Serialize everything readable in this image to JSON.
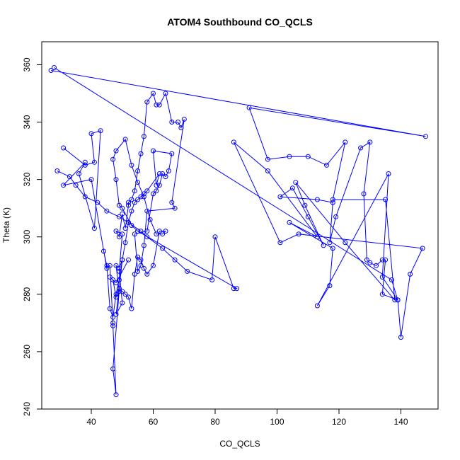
{
  "chart_data": {
    "type": "line",
    "title": "ATOM4 Southbound CO_QCLS",
    "xlabel": "CO_QCLS",
    "ylabel": "Theta (K)",
    "xlim": [
      24,
      152
    ],
    "ylim": [
      240,
      368
    ],
    "xticks": [
      40,
      60,
      80,
      100,
      120,
      140
    ],
    "yticks": [
      240,
      260,
      280,
      300,
      320,
      340,
      360
    ],
    "markers": "open-circle",
    "grid": false,
    "legend": "none",
    "colors": {
      "series": "#0000ff",
      "axis": "#000000",
      "background": "#ffffff"
    },
    "series": [
      {
        "x": [
          27,
          148,
          91,
          97,
          104,
          110,
          116,
          122,
          118,
          135,
          138,
          122,
          106,
          109,
          115,
          110,
          105,
          101,
          113,
          118,
          117,
          119,
          127,
          130,
          128,
          129,
          130,
          132,
          134,
          135,
          134,
          139,
          140,
          143,
          147,
          107,
          101,
          86,
          97,
          113,
          104,
          118,
          117,
          113,
          136,
          134,
          139,
          137,
          28
        ],
        "y": [
          358,
          335,
          345,
          327,
          328,
          328,
          325,
          333,
          313,
          313,
          278,
          298,
          319,
          311,
          297,
          307,
          317,
          314,
          313,
          312,
          298,
          307,
          331,
          333,
          315,
          292,
          291,
          290,
          292,
          292,
          280,
          278,
          265,
          287,
          296,
          301,
          298,
          333,
          323,
          300,
          305,
          296,
          283,
          276,
          322,
          286,
          278,
          285,
          359
        ]
      },
      {
        "x": [
          31,
          38,
          41,
          40,
          43,
          41,
          36,
          38,
          31,
          40,
          45,
          46,
          47,
          47,
          48,
          47,
          49,
          48,
          49,
          50,
          49,
          48,
          50,
          49,
          50,
          48,
          49,
          50,
          51,
          52,
          52,
          53,
          54,
          55,
          56,
          57,
          58,
          60,
          61,
          62,
          64,
          66,
          68,
          69,
          70,
          66,
          67,
          58,
          57,
          56,
          55,
          54,
          58,
          60,
          61,
          62,
          63,
          64,
          65,
          66,
          60,
          61,
          62,
          58,
          57,
          56,
          55,
          54,
          53,
          52,
          51,
          50,
          49,
          48,
          47,
          46,
          45,
          44
        ],
        "y": [
          331,
          325,
          326,
          336,
          337,
          303,
          322,
          326,
          318,
          320,
          289,
          290,
          270,
          269,
          245,
          254,
          281,
          290,
          289,
          292,
          282,
          273,
          277,
          288,
          301,
          302,
          300,
          308,
          303,
          311,
          312,
          313,
          316,
          323,
          329,
          335,
          347,
          350,
          346,
          346,
          350,
          340,
          340,
          338,
          341,
          312,
          310,
          309,
          297,
          290,
          288,
          301,
          302,
          315,
          316,
          318,
          322,
          321,
          323,
          329,
          330,
          318,
          322,
          316,
          315,
          314,
          313,
          312,
          309,
          305,
          298,
          292,
          285,
          280,
          272,
          275,
          290,
          295
        ]
      },
      {
        "x": [
          29,
          33,
          35,
          38,
          42,
          45,
          49,
          52,
          56,
          58,
          63,
          67,
          71,
          79,
          80,
          86,
          87,
          55,
          53,
          50,
          49,
          48,
          47,
          48,
          51,
          53,
          55,
          57,
          59,
          61,
          63,
          64,
          62,
          60,
          58,
          57,
          56,
          55,
          54,
          53,
          52,
          51,
          50,
          49,
          48,
          47,
          46,
          48,
          52
        ],
        "y": [
          323,
          321,
          318,
          314,
          312,
          309,
          307,
          305,
          302,
          300,
          296,
          292,
          288,
          285,
          300,
          282,
          282,
          302,
          304,
          310,
          311,
          320,
          327,
          330,
          334,
          325,
          319,
          314,
          306,
          301,
          301,
          302,
          302,
          290,
          287,
          289,
          292,
          293,
          287,
          275,
          279,
          280,
          281,
          282,
          279,
          285,
          286,
          284,
          292
        ]
      }
    ]
  }
}
